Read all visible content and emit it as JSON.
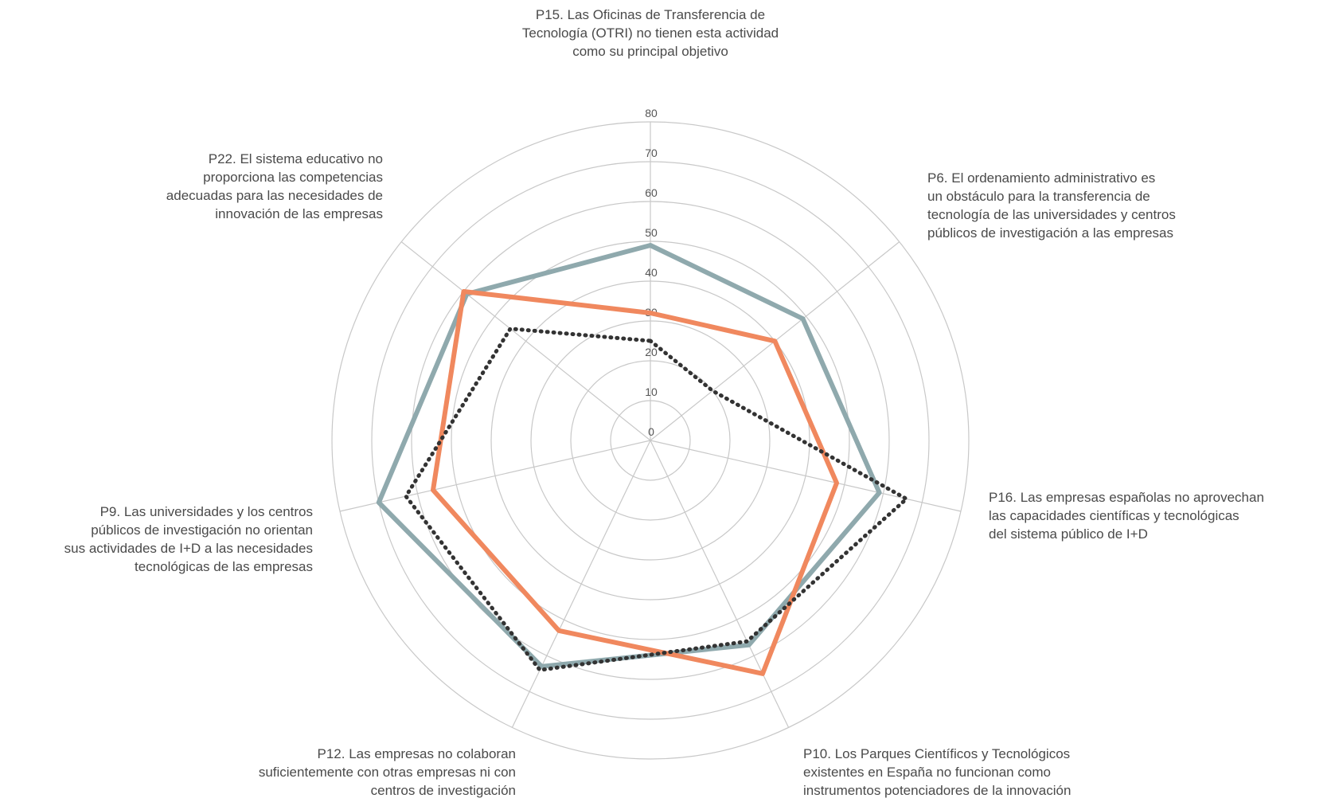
{
  "chart_data": {
    "type": "radar",
    "title": "",
    "axes": [
      {
        "id": "P15",
        "label_lines": [
          "P15. Las Oficinas de Transferencia de",
          "Tecnología (OTRI) no tienen esta actividad",
          "como su principal objetivo"
        ]
      },
      {
        "id": "P6",
        "label_lines": [
          "P6. El ordenamiento administrativo es",
          "un obstáculo para la transferencia de",
          "tecnología de las universidades y centros",
          "públicos de investigación a las empresas"
        ]
      },
      {
        "id": "P16",
        "label_lines": [
          "P16. Las empresas españolas no aprovechan",
          "las capacidades científicas y tecnológicas",
          "del sistema público de I+D"
        ]
      },
      {
        "id": "P10",
        "label_lines": [
          "P10. Los Parques Científicos y Tecnológicos",
          "existentes en España no funcionan como",
          "instrumentos potenciadores de la innovación"
        ]
      },
      {
        "id": "P12",
        "label_lines": [
          "P12. Las empresas no colaboran",
          "suficientemente con otras empresas ni con",
          "centros de investigación"
        ]
      },
      {
        "id": "P9",
        "label_lines": [
          "P9. Las universidades y los centros",
          "públicos de investigación no orientan",
          "sus actividades de I+D a las necesidades",
          "tecnológicas de las empresas"
        ]
      },
      {
        "id": "P22",
        "label_lines": [
          "P22. El sistema educativo no",
          "proporciona las competencias",
          "adecuadas para las necesidades de",
          "innovación de las empresas"
        ]
      }
    ],
    "r_ticks": [
      0,
      10,
      20,
      30,
      40,
      50,
      60,
      70,
      80
    ],
    "r_range": [
      0,
      80
    ],
    "grid": true,
    "series": [
      {
        "values": [
          49,
          49,
          59,
          57,
          63,
          70,
          59
        ],
        "color": "#8fa9ad",
        "style": "solid"
      },
      {
        "values": [
          32,
          40,
          48,
          65,
          53,
          56,
          60
        ],
        "color": "#f0885e",
        "style": "solid"
      },
      {
        "values": [
          25,
          20,
          66,
          56,
          64,
          63,
          45
        ],
        "color": "#333333",
        "style": "dotted"
      }
    ]
  }
}
